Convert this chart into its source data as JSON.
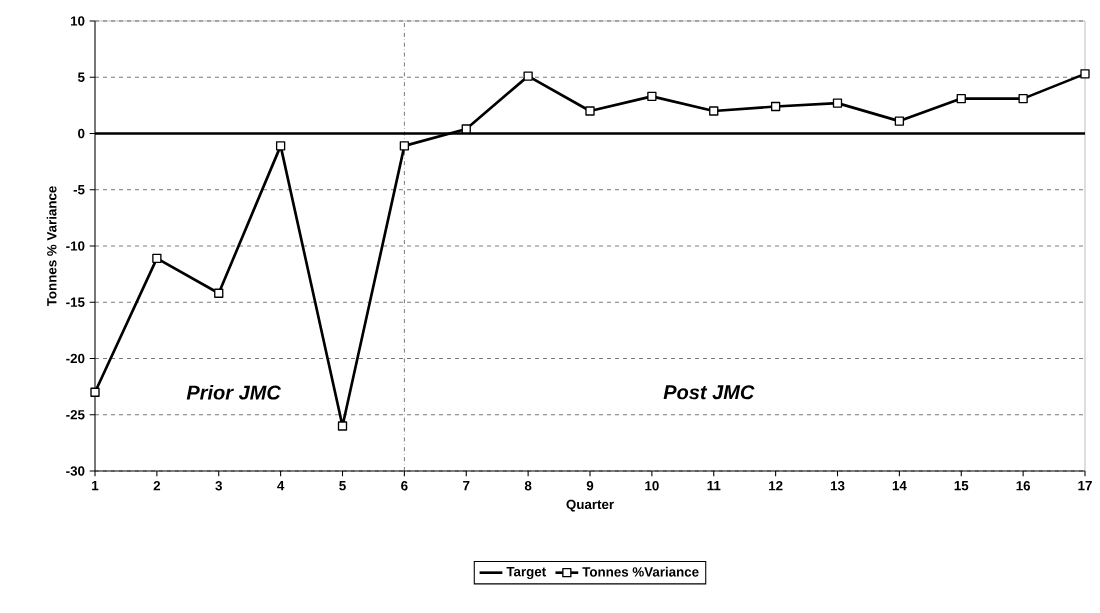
{
  "chart_data": {
    "type": "line",
    "xlabel": "Quarter",
    "ylabel": "Tonnes % Variance",
    "x": [
      1,
      2,
      3,
      4,
      5,
      6,
      7,
      8,
      9,
      10,
      11,
      12,
      13,
      14,
      15,
      16,
      17
    ],
    "series": [
      {
        "name": "Target",
        "color": "#000000",
        "marker": "none",
        "values": [
          0,
          0,
          0,
          0,
          0,
          0,
          0,
          0,
          0,
          0,
          0,
          0,
          0,
          0,
          0,
          0,
          0
        ]
      },
      {
        "name": "Tonnes %Variance",
        "color": "#000000",
        "marker": "square",
        "values": [
          -23.0,
          -11.1,
          -14.2,
          -1.1,
          -26.0,
          -1.1,
          0.4,
          5.1,
          2.0,
          3.3,
          2.0,
          2.4,
          2.7,
          1.1,
          3.1,
          3.1,
          5.3
        ]
      }
    ],
    "xlim": [
      1,
      17
    ],
    "xticks": [
      1,
      2,
      3,
      4,
      5,
      6,
      7,
      8,
      9,
      10,
      11,
      12,
      13,
      14,
      15,
      16,
      17
    ],
    "ylim": [
      -30,
      10
    ],
    "yticks": [
      -30,
      -25,
      -20,
      -15,
      -10,
      -5,
      0,
      5,
      10
    ],
    "grid": "y",
    "legend": "bottom",
    "ref_lines": [
      {
        "axis": "x",
        "value": 6,
        "line_style": "dashdot"
      }
    ],
    "annotations": [
      "Prior JMC",
      "Post JMC"
    ]
  }
}
